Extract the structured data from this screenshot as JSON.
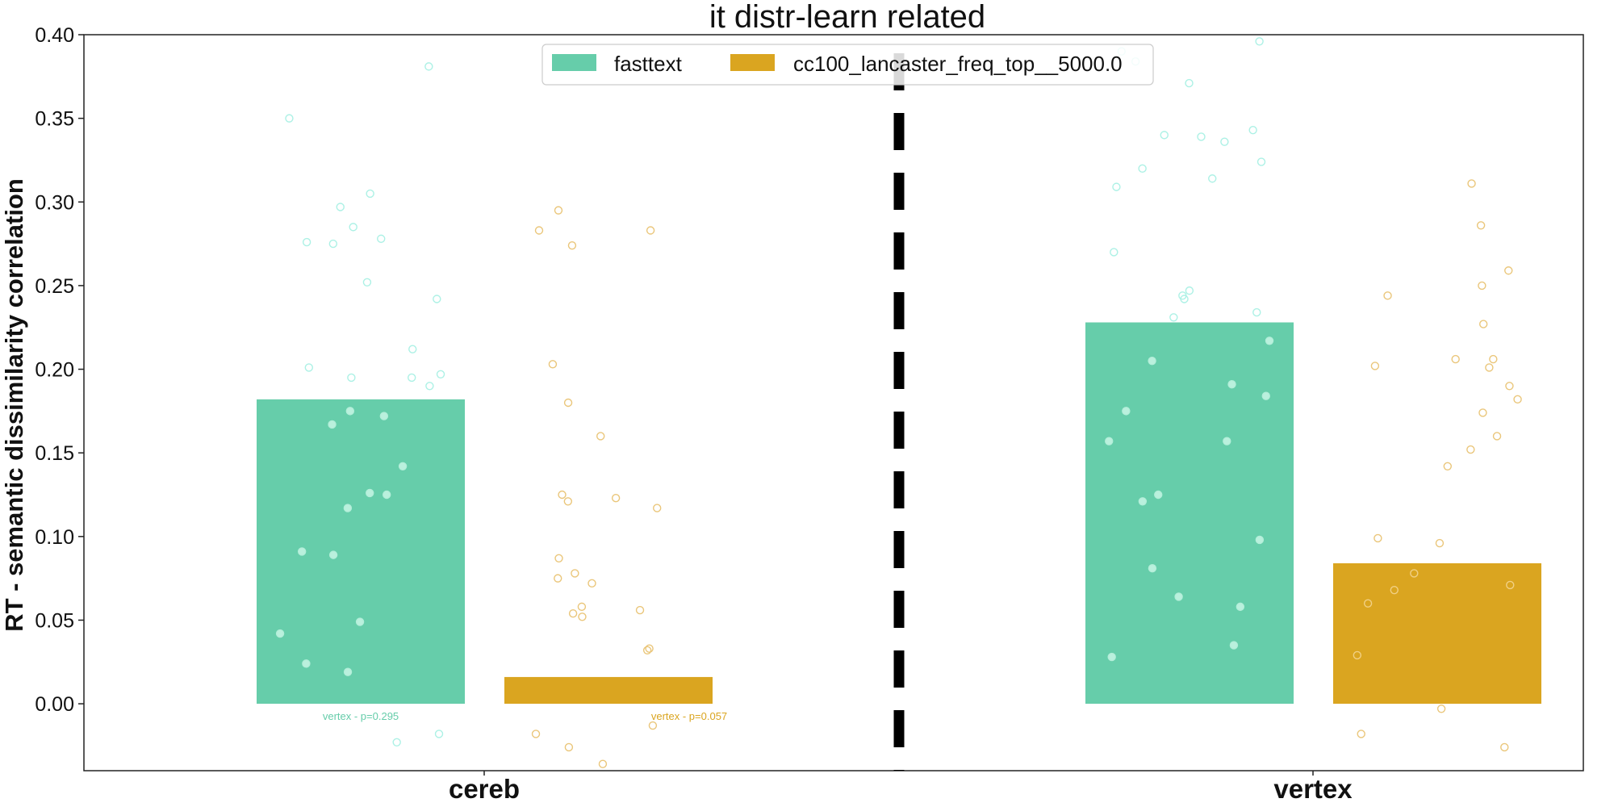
{
  "chart_data": {
    "type": "bar",
    "title": "it distr-learn related",
    "ylabel": "RT - semantic dissimilarity correlation",
    "xlabel": "",
    "ylim": [
      -0.04,
      0.4
    ],
    "yticks": [
      "0.00",
      "0.05",
      "0.10",
      "0.15",
      "0.20",
      "0.25",
      "0.30",
      "0.35",
      "0.40"
    ],
    "ytick_values": [
      0.0,
      0.05,
      0.1,
      0.15,
      0.2,
      0.25,
      0.3,
      0.35,
      0.4
    ],
    "categories": [
      "cereb",
      "vertex"
    ],
    "legend_position": "top-center",
    "grid": false,
    "divider": "dashed vertical line between groups",
    "series": [
      {
        "name": "fasttext",
        "color": "#66cdaa",
        "values": [
          0.182,
          0.228
        ],
        "points": [
          [
            0.381,
            0.35,
            0.305,
            0.297,
            0.285,
            0.278,
            0.276,
            0.275,
            0.252,
            0.242,
            0.212,
            0.201,
            0.197,
            0.195,
            0.195,
            0.19,
            0.175,
            0.172,
            0.167,
            0.142,
            0.126,
            0.125,
            0.117,
            0.091,
            0.089,
            0.049,
            0.042,
            0.024,
            0.019,
            -0.018,
            -0.023
          ],
          [
            0.396,
            0.39,
            0.384,
            0.371,
            0.343,
            0.34,
            0.339,
            0.336,
            0.324,
            0.32,
            0.314,
            0.309,
            0.27,
            0.247,
            0.244,
            0.242,
            0.234,
            0.231,
            0.217,
            0.205,
            0.191,
            0.184,
            0.175,
            0.157,
            0.157,
            0.125,
            0.121,
            0.098,
            0.081,
            0.064,
            0.058,
            0.035,
            0.028
          ]
        ]
      },
      {
        "name": "cc100_lancaster_freq_top__5000.0",
        "color": "#daa520",
        "values": [
          0.016,
          0.084
        ],
        "points": [
          [
            0.295,
            0.283,
            0.283,
            0.274,
            0.203,
            0.18,
            0.16,
            0.125,
            0.123,
            0.121,
            0.117,
            0.087,
            0.078,
            0.075,
            0.072,
            0.058,
            0.056,
            0.054,
            0.052,
            0.033,
            0.032,
            -0.013,
            -0.018,
            -0.026,
            -0.036
          ],
          [
            0.311,
            0.286,
            0.259,
            0.25,
            0.244,
            0.227,
            0.206,
            0.206,
            0.202,
            0.201,
            0.19,
            0.182,
            0.174,
            0.16,
            0.152,
            0.142,
            0.099,
            0.096,
            0.078,
            0.071,
            0.068,
            0.06,
            0.029,
            -0.003,
            -0.018,
            -0.026
          ]
        ]
      }
    ],
    "annotations": [
      {
        "text": "vertex - p=0.295",
        "category": "cereb",
        "series": "fasttext"
      },
      {
        "text": "vertex - p=0.057",
        "category": "cereb",
        "series": "cc100_lancaster_freq_top__5000.0"
      }
    ]
  }
}
